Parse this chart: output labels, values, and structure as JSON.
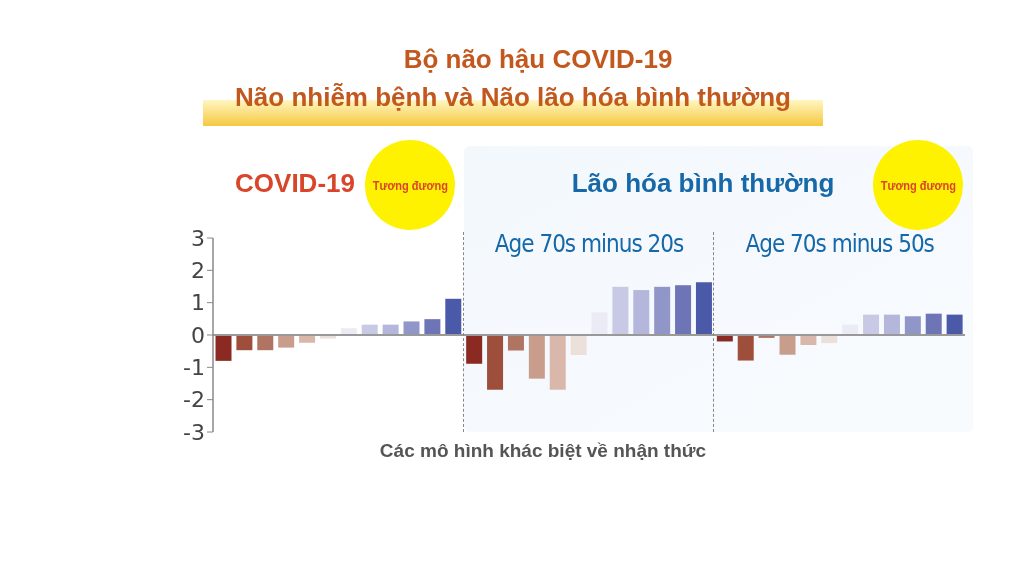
{
  "chart_data": {
    "type": "bar",
    "title": "Bộ não hậu COVID-19",
    "subtitle": "Não nhiễm bệnh và Não lão hóa bình thường",
    "xlabel": "Các mô hình khác biệt về nhận thức",
    "annotations": [
      "COVID-19",
      "Tương đương",
      "Lão hóa bình thường",
      "Tương đương",
      "Age 70s minus 20s",
      "Age 70s minus 50s"
    ],
    "categories": [
      null,
      null,
      null,
      null,
      null,
      null,
      null,
      null,
      null,
      null,
      null,
      null,
      null,
      null,
      null,
      null,
      null,
      null,
      null,
      null,
      null,
      null,
      null,
      null,
      null,
      null,
      null,
      null,
      null,
      null,
      null,
      null,
      null,
      null,
      null,
      null
    ],
    "values": [
      -0.8,
      -0.47,
      -0.47,
      -0.39,
      -0.24,
      -0.11,
      0.21,
      0.32,
      0.32,
      0.42,
      0.49,
      1.12,
      -0.89,
      -1.69,
      -0.48,
      -1.35,
      -1.69,
      -0.62,
      0.7,
      1.49,
      1.39,
      1.49,
      1.54,
      1.63,
      -0.2,
      -0.79,
      -0.09,
      -0.61,
      -0.31,
      -0.25,
      0.32,
      0.63,
      0.63,
      0.58,
      0.66,
      0.63
    ],
    "colors": [
      "#8b2a22",
      "#9e4f3c",
      "#b07462",
      "#c99d8c",
      "#d9b8ab",
      "#ece0db",
      "#ebebf5",
      "#c8c9e4",
      "#b4b6dc",
      "#9196c8",
      "#6e75b6",
      "#4a5aa8",
      "#8b2a22",
      "#9e4f3c",
      "#b07462",
      "#c99d8c",
      "#d9b8ab",
      "#ece0db",
      "#ebebf5",
      "#c8c9e4",
      "#b4b6dc",
      "#9196c8",
      "#6e75b6",
      "#4a5aa8",
      "#8b2a22",
      "#9e4f3c",
      "#b07462",
      "#c99d8c",
      "#d9b8ab",
      "#ece0db",
      "#ebebf5",
      "#c8c9e4",
      "#b4b6dc",
      "#9196c8",
      "#6e75b6",
      "#4a5aa8"
    ],
    "ylim": [
      -3,
      3
    ],
    "yticks": [
      -3,
      -2,
      -1,
      0,
      1,
      2,
      3
    ]
  }
}
